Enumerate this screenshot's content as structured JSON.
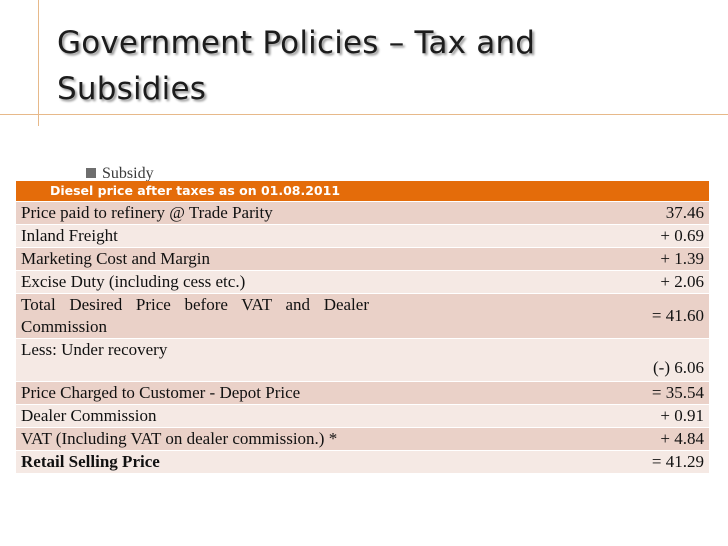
{
  "slide": {
    "title_line1": "Government Policies – Tax and",
    "title_line2": "Subsidies",
    "bullet_text": "Subsidy                                              "
  },
  "table": {
    "header": "Diesel price after taxes as on 01.08.2011",
    "rows": [
      {
        "label": "Price paid to refinery @ Trade Parity",
        "value": "37.46"
      },
      {
        "label": "Inland Freight",
        "value": "+ 0.69"
      },
      {
        "label": "Marketing Cost and Margin",
        "value": "+ 1.39"
      },
      {
        "label": "Excise Duty (including cess etc.)",
        "value": "+ 2.06"
      },
      {
        "label": "Total Desired Price before VAT and Dealer Commission",
        "value": "= 41.60"
      },
      {
        "label": "Less: Under recovery",
        "value": "(-) 6.06"
      },
      {
        "label": "Price Charged to Customer - Depot Price",
        "value": "= 35.54"
      },
      {
        "label": "Dealer Commission",
        "value": "+ 0.91"
      },
      {
        "label": "VAT (Including VAT on dealer commission.) *",
        "value": "+ 4.84"
      },
      {
        "label": "Retail Selling Price",
        "value": "= 41.29"
      }
    ]
  }
}
